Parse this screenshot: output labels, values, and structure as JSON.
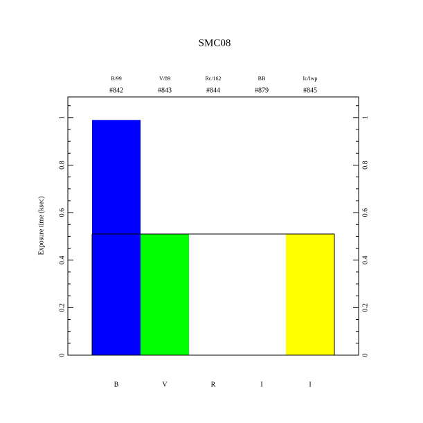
{
  "chart_data": {
    "type": "bar",
    "title": "SMC08",
    "ylabel": "Exposure time (ksec)",
    "categories": [
      "B",
      "V",
      "R",
      "I",
      "I"
    ],
    "filters": [
      "B/99",
      "V/89",
      "Rc/162",
      "BB",
      "Ic/Iwp"
    ],
    "filter_ids": [
      "#842",
      "#843",
      "#844",
      "#879",
      "#845"
    ],
    "values": [
      0.99,
      0.51,
      0,
      0,
      0.51
    ],
    "colors": [
      "#0000ff",
      "#00ff00",
      "#ffffff",
      "#ffffff",
      "#ffff00"
    ],
    "outline_values": [
      0.51,
      0.51,
      0.51,
      0.51,
      0.51
    ],
    "xlim": [
      0,
      6
    ],
    "ylim": [
      0,
      1.087
    ],
    "yticks": [
      0,
      0.2,
      0.4,
      0.6,
      0.8,
      1
    ],
    "yminor": [
      0.05,
      0.1,
      0.15,
      0.25,
      0.3,
      0.35,
      0.45,
      0.5,
      0.55,
      0.65,
      0.7,
      0.75,
      0.85,
      0.9,
      0.95,
      1.05
    ]
  }
}
